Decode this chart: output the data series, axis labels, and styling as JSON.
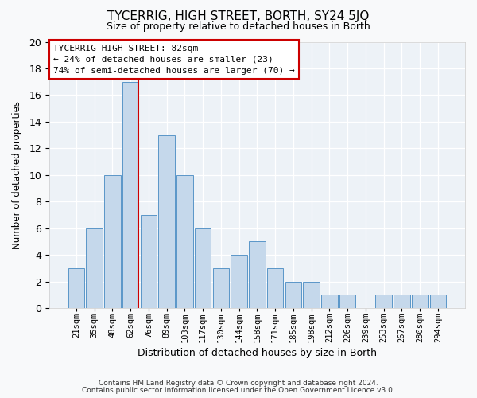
{
  "title": "TYCERRIG, HIGH STREET, BORTH, SY24 5JQ",
  "subtitle": "Size of property relative to detached houses in Borth",
  "xlabel": "Distribution of detached houses by size in Borth",
  "ylabel": "Number of detached properties",
  "bar_labels": [
    "21sqm",
    "35sqm",
    "48sqm",
    "62sqm",
    "76sqm",
    "89sqm",
    "103sqm",
    "117sqm",
    "130sqm",
    "144sqm",
    "158sqm",
    "171sqm",
    "185sqm",
    "198sqm",
    "212sqm",
    "226sqm",
    "239sqm",
    "253sqm",
    "267sqm",
    "280sqm",
    "294sqm"
  ],
  "bar_values": [
    3,
    6,
    10,
    17,
    7,
    13,
    10,
    6,
    3,
    4,
    5,
    3,
    2,
    2,
    1,
    1,
    0,
    1,
    1,
    1,
    1
  ],
  "bar_color": "#c5d8eb",
  "bar_edgecolor": "#5a96c8",
  "vline_color": "#cc0000",
  "vline_x": 4.0,
  "annotation_line1": "TYCERRIG HIGH STREET: 82sqm",
  "annotation_line2": "← 24% of detached houses are smaller (23)",
  "annotation_line3": "74% of semi-detached houses are larger (70) →",
  "ylim": [
    0,
    20
  ],
  "yticks": [
    0,
    2,
    4,
    6,
    8,
    10,
    12,
    14,
    16,
    18,
    20
  ],
  "footnote_line1": "Contains HM Land Registry data © Crown copyright and database right 2024.",
  "footnote_line2": "Contains public sector information licensed under the Open Government Licence v3.0.",
  "fig_bg_color": "#f8f9fa",
  "ax_bg_color": "#edf2f7"
}
